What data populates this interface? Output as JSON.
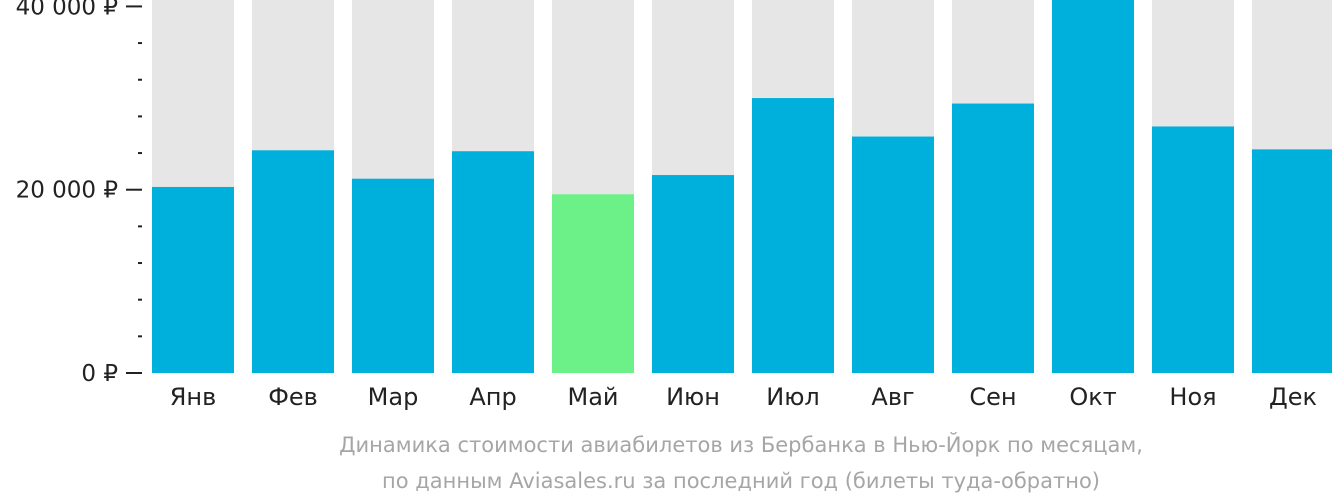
{
  "chart_data": {
    "type": "bar",
    "categories": [
      "Янв",
      "Фев",
      "Мар",
      "Апр",
      "Май",
      "Июн",
      "Июл",
      "Авг",
      "Сен",
      "Окт",
      "Ноя",
      "Дек"
    ],
    "values": [
      20300,
      24300,
      21200,
      24200,
      19500,
      21600,
      30000,
      25800,
      29400,
      40700,
      26900,
      24400
    ],
    "ylim": [
      0,
      40700
    ],
    "yticks": [
      {
        "value": 40000,
        "label": "40 000 ₽"
      },
      {
        "value": 20000,
        "label": "20 000 ₽"
      },
      {
        "value": 0,
        "label": "0 ₽"
      }
    ],
    "minor_tick_step": 4000,
    "highlight_index": 4,
    "caption": [
      "Динамика стоимости авиабилетов из Бербанка в Нью-Йорк по месяцам,",
      "по данным Aviasales.ru за последний год (билеты туда-обратно)"
    ],
    "colors": {
      "bar": "#00b0dc",
      "highlight": "#6cf088",
      "track": "#e6e6e6",
      "axis": "#222222",
      "caption": "#a6a6a6"
    }
  }
}
